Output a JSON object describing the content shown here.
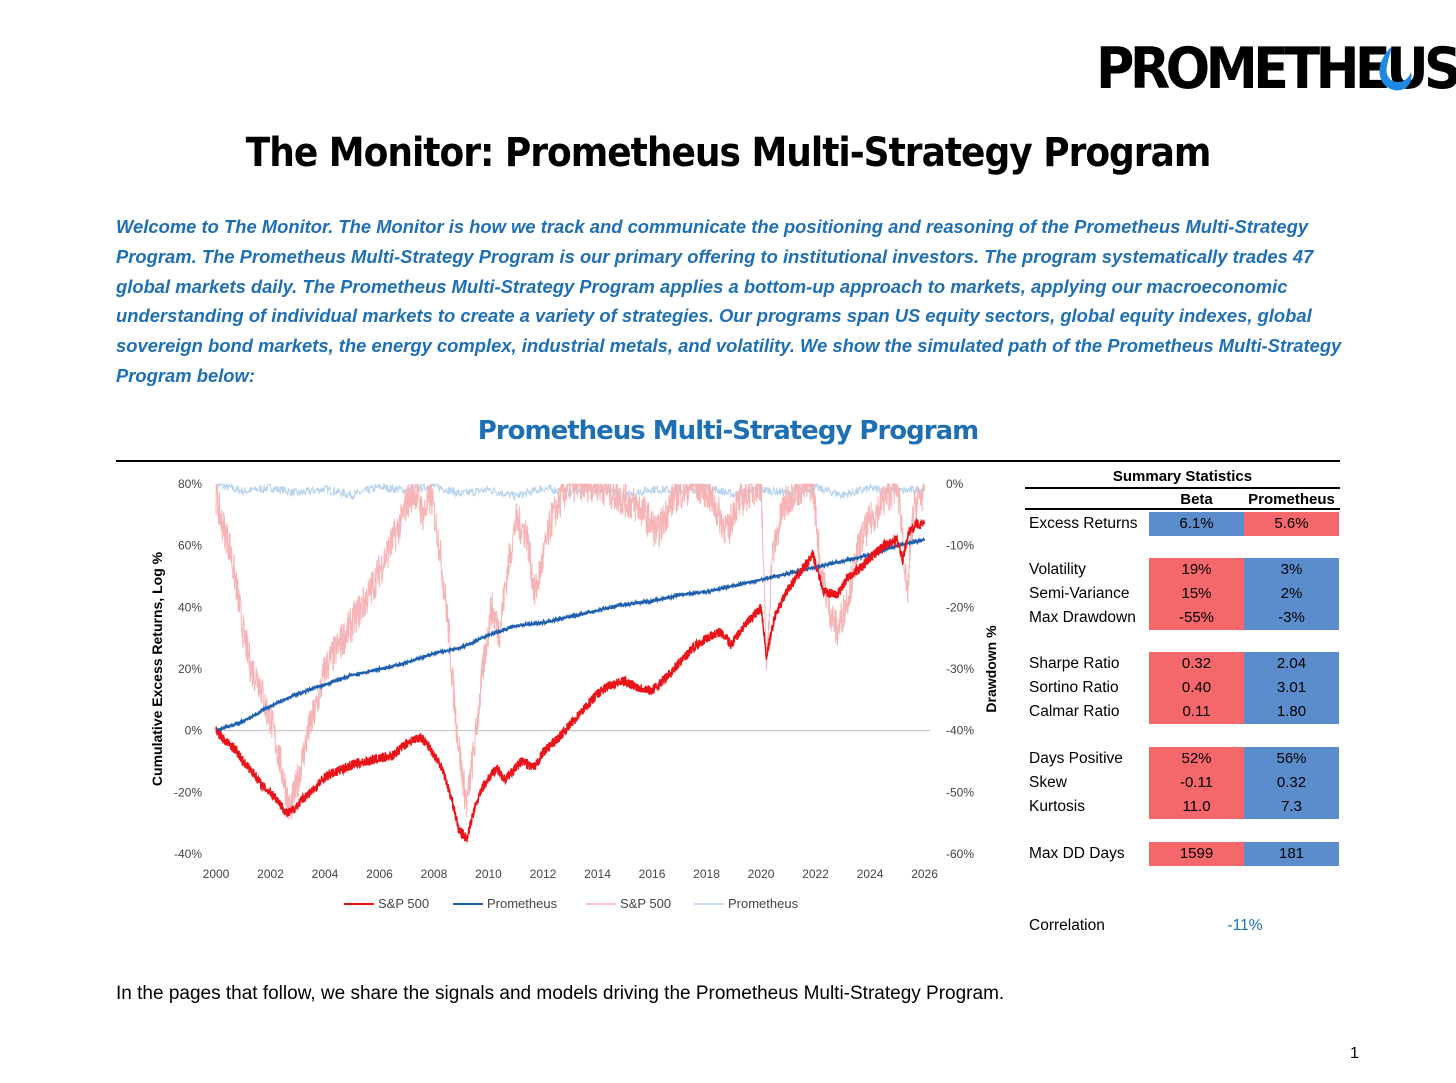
{
  "brand": {
    "name": "PROMETHEUS",
    "accent": "#1f6fb5"
  },
  "title": "The Monitor: Prometheus Multi-Strategy Program",
  "intro": [
    "Welcome to The Monitor. The Monitor is how we track and communicate the positioning and reasoning of the Prometheus Multi-Strategy",
    "Program. The Prometheus Multi-Strategy Program is our primary offering to institutional investors. The program systematically trades 47",
    "global markets daily. The Prometheus Multi-Strategy Program applies a bottom-up approach to markets, applying our macroeconomic",
    "understanding of individual markets to create a variety of strategies. Our programs span US equity sectors, global equity indexes, global",
    "sovereign bond markets, the energy complex, industrial metals, and volatility. We show the simulated path of the Prometheus Multi-Strategy",
    "Program below:"
  ],
  "chart_title": "Prometheus Multi-Strategy Program",
  "chart_data": {
    "type": "line",
    "title": "Prometheus Multi-Strategy Program",
    "ylabel": "Cumulative Excess Returns, Log %",
    "y2label": "Drawdown %",
    "ylim": [
      -40,
      80
    ],
    "y2lim": [
      -60,
      0
    ],
    "xlim": [
      2000,
      2026.2
    ],
    "yticks": [
      "80%",
      "60%",
      "40%",
      "20%",
      "0%",
      "-20%",
      "-40%"
    ],
    "y2ticks": [
      "0%",
      "-10%",
      "-20%",
      "-30%",
      "-40%",
      "-50%",
      "-60%"
    ],
    "xticks": [
      "2000",
      "2002",
      "2004",
      "2006",
      "2008",
      "2010",
      "2012",
      "2014",
      "2016",
      "2018",
      "2020",
      "2022",
      "2024",
      "2026"
    ],
    "legend": [
      "S&P 500",
      "Prometheus",
      "S&P 500",
      "Prometheus"
    ],
    "colors": {
      "sp500": "#e8141a",
      "prometheus": "#1f5fb0",
      "sp500_dd": "#f6b4b6",
      "prometheus_dd": "#b8d3ee"
    },
    "series": [
      {
        "name": "S&P 500",
        "axis": "left",
        "x": [
          2000.0,
          2000.3,
          2000.7,
          2001.0,
          2001.4,
          2001.7,
          2002.0,
          2002.3,
          2002.6,
          2002.8,
          2003.2,
          2003.6,
          2004.0,
          2004.5,
          2005.0,
          2005.5,
          2006.0,
          2006.5,
          2007.0,
          2007.5,
          2007.8,
          2008.3,
          2008.7,
          2008.9,
          2009.2,
          2009.5,
          2009.8,
          2010.3,
          2010.6,
          2011.2,
          2011.7,
          2012.0,
          2012.5,
          2013.0,
          2013.5,
          2014.0,
          2014.5,
          2015.0,
          2015.5,
          2016.0,
          2016.5,
          2017.0,
          2017.5,
          2018.0,
          2018.5,
          2018.9,
          2019.3,
          2019.8,
          2020.0,
          2020.2,
          2020.5,
          2021.0,
          2021.5,
          2021.9,
          2022.3,
          2022.8,
          2023.2,
          2023.7,
          2024.0,
          2024.5,
          2025.0,
          2025.2,
          2025.4,
          2025.7,
          2026.0
        ],
        "values": [
          0,
          -3,
          -6,
          -10,
          -14,
          -18,
          -20,
          -23,
          -27,
          -26,
          -22,
          -19,
          -15,
          -13,
          -11,
          -10,
          -9,
          -8,
          -4,
          -2,
          -5,
          -12,
          -24,
          -32,
          -35,
          -25,
          -18,
          -12,
          -16,
          -10,
          -12,
          -7,
          -3,
          2,
          7,
          12,
          15,
          16,
          14,
          13,
          17,
          22,
          27,
          30,
          32,
          28,
          33,
          38,
          40,
          24,
          37,
          46,
          52,
          57,
          45,
          44,
          50,
          53,
          56,
          60,
          62,
          55,
          64,
          67,
          67
        ]
      },
      {
        "name": "Prometheus",
        "axis": "left",
        "x": [
          2000.0,
          2001.0,
          2002.0,
          2003.0,
          2004.0,
          2005.0,
          2006.0,
          2007.0,
          2008.0,
          2009.0,
          2010.0,
          2011.0,
          2012.0,
          2013.0,
          2014.0,
          2015.0,
          2016.0,
          2017.0,
          2018.0,
          2019.0,
          2020.0,
          2021.0,
          2022.0,
          2023.0,
          2024.0,
          2025.0,
          2026.0
        ],
        "values": [
          0,
          3,
          8,
          12,
          15,
          18,
          20,
          22,
          25,
          27,
          31,
          34,
          35,
          37,
          39,
          41,
          42,
          44,
          45,
          47,
          49,
          51,
          53,
          55,
          57,
          60,
          62
        ]
      },
      {
        "name": "S&P 500",
        "axis": "right",
        "x": [
          2000.0,
          2000.2,
          2000.5,
          2000.8,
          2001.0,
          2001.3,
          2001.6,
          2001.8,
          2002.0,
          2002.3,
          2002.5,
          2002.7,
          2002.9,
          2003.1,
          2003.4,
          2003.7,
          2004.0,
          2004.4,
          2004.8,
          2005.2,
          2005.6,
          2006.0,
          2006.4,
          2006.8,
          2007.0,
          2007.3,
          2007.6,
          2007.9,
          2008.2,
          2008.5,
          2008.8,
          2009.0,
          2009.2,
          2009.5,
          2009.8,
          2010.1,
          2010.4,
          2010.7,
          2011.0,
          2011.4,
          2011.7,
          2012.0,
          2012.3,
          2012.7,
          2013.0,
          2014.0,
          2014.8,
          2015.6,
          2016.2,
          2016.8,
          2017.5,
          2018.0,
          2018.8,
          2019.0,
          2019.6,
          2020.0,
          2020.2,
          2020.4,
          2020.8,
          2021.2,
          2021.9,
          2022.2,
          2022.5,
          2022.8,
          2023.2,
          2023.6,
          2024.0,
          2024.6,
          2025.0,
          2025.2,
          2025.35,
          2025.6,
          2026.0
        ],
        "values": [
          -2,
          -6,
          -10,
          -18,
          -24,
          -30,
          -32,
          -36,
          -38,
          -44,
          -48,
          -53,
          -50,
          -46,
          -40,
          -36,
          -30,
          -27,
          -24,
          -21,
          -18,
          -14,
          -10,
          -6,
          -3,
          -1,
          -5,
          -2,
          -10,
          -22,
          -38,
          -46,
          -52,
          -42,
          -30,
          -20,
          -24,
          -14,
          -6,
          -8,
          -18,
          -12,
          -6,
          -2,
          0,
          0,
          -2,
          -4,
          -8,
          -2,
          0,
          -1,
          -8,
          -4,
          -1,
          0,
          -30,
          -12,
          -4,
          -1,
          0,
          -14,
          -20,
          -24,
          -18,
          -10,
          -6,
          -2,
          0,
          -8,
          -19,
          -4,
          -1
        ]
      },
      {
        "name": "Prometheus",
        "axis": "right",
        "x": [
          2000.0,
          2001.0,
          2002.0,
          2003.0,
          2004.0,
          2005.0,
          2006.0,
          2007.0,
          2008.0,
          2009.0,
          2010.0,
          2011.0,
          2012.0,
          2013.0,
          2014.0,
          2015.0,
          2016.0,
          2017.0,
          2018.0,
          2019.0,
          2020.0,
          2021.0,
          2022.0,
          2023.0,
          2024.0,
          2025.0,
          2026.0
        ],
        "values": [
          0,
          -1.2,
          -0.6,
          -1.5,
          -0.8,
          -1.8,
          -0.5,
          -1.0,
          -0.3,
          -1.6,
          -0.9,
          -2.0,
          -0.7,
          -1.3,
          -0.6,
          -1.9,
          -0.8,
          -1.1,
          -0.5,
          -1.7,
          -0.9,
          -1.4,
          -0.6,
          -1.8,
          -0.7,
          -1.2,
          -0.8
        ]
      }
    ]
  },
  "stats": {
    "title": "Summary Statistics",
    "col1": "Beta",
    "col2": "Prometheus",
    "colors": {
      "red": "#f4676b",
      "blue": "#5b8ccb"
    },
    "rows": [
      {
        "label": "Excess Returns",
        "beta": "6.1%",
        "prom": "5.6%",
        "beta_color": "blue",
        "prom_color": "red"
      },
      {
        "label": "Volatility",
        "beta": "19%",
        "prom": "3%",
        "beta_color": "red",
        "prom_color": "blue"
      },
      {
        "label": "Semi-Variance",
        "beta": "15%",
        "prom": "2%",
        "beta_color": "red",
        "prom_color": "blue"
      },
      {
        "label": "Max Drawdown",
        "beta": "-55%",
        "prom": "-3%",
        "beta_color": "red",
        "prom_color": "blue"
      },
      {
        "label": "Sharpe Ratio",
        "beta": "0.32",
        "prom": "2.04",
        "beta_color": "red",
        "prom_color": "blue"
      },
      {
        "label": "Sortino Ratio",
        "beta": "0.40",
        "prom": "3.01",
        "beta_color": "red",
        "prom_color": "blue"
      },
      {
        "label": "Calmar Ratio",
        "beta": "0.11",
        "prom": "1.80",
        "beta_color": "red",
        "prom_color": "blue"
      },
      {
        "label": "Days Positive",
        "beta": "52%",
        "prom": "56%",
        "beta_color": "red",
        "prom_color": "blue"
      },
      {
        "label": "Skew",
        "beta": "-0.11",
        "prom": "0.32",
        "beta_color": "red",
        "prom_color": "blue"
      },
      {
        "label": "Kurtosis",
        "beta": "11.0",
        "prom": "7.3",
        "beta_color": "red",
        "prom_color": "blue"
      },
      {
        "label": "Max DD Days",
        "beta": "1599",
        "prom": "181",
        "beta_color": "red",
        "prom_color": "blue"
      }
    ],
    "correlation_label": "Correlation",
    "correlation_value": "-11%"
  },
  "footer": "In the pages that follow, we share the signals and models driving the Prometheus Multi-Strategy Program.",
  "page_number": "1"
}
